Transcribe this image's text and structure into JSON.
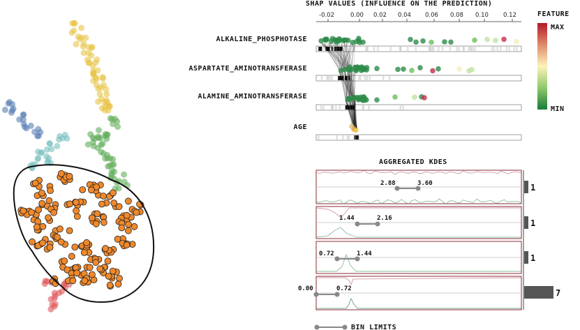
{
  "shap": {
    "title": "SHAP VALUES (INFLUENCE ON THE PREDICTION)",
    "ticks": [
      "-0.02",
      "0.00",
      "0.02",
      "0.04",
      "0.06",
      "0.08",
      "0.10",
      "0.12"
    ],
    "features": [
      "ALKALINE_PHOSPHOTASE",
      "ASPARTATE_AMINOTRANSFERASE",
      "ALAMINE_AMINOTRANSFERASE",
      "AGE"
    ]
  },
  "legend": {
    "title": "FEATURE",
    "max_label": "MAX",
    "min_label": "MIN",
    "colors": {
      "max": "#b2182b",
      "mid": "#fbf3b9",
      "min": "#1a7a3a"
    }
  },
  "kde": {
    "title": "AGGREGATED KDES",
    "rows": [
      {
        "low": "2.88",
        "high": "3.60",
        "count": "1"
      },
      {
        "low": "1.44",
        "high": "2.16",
        "count": "1"
      },
      {
        "low": "0.72",
        "high": "1.44",
        "count": "1"
      },
      {
        "low": "0.00",
        "high": "0.72",
        "count": "7"
      }
    ],
    "bin_limits_label": "BIN LIMITS"
  },
  "clusters": {
    "colors": {
      "yellow": "#e8c547",
      "blue": "#5a7fb5",
      "teal": "#7bbfc0",
      "green": "#62ae5b",
      "orange": "#f0892b",
      "red": "#e0585c"
    }
  }
}
